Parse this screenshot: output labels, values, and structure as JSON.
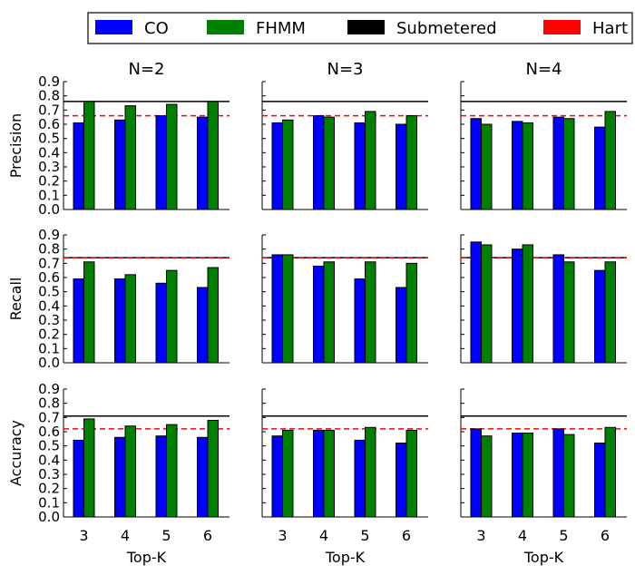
{
  "chart_data": {
    "type": "bar",
    "legend": {
      "placement": "top",
      "entries": [
        {
          "label": "CO",
          "color": "#0000ff"
        },
        {
          "label": "FHMM",
          "color": "#008000"
        },
        {
          "label": "Submetered",
          "color": "#000000"
        },
        {
          "label": "Hart",
          "color": "#ff0000"
        }
      ]
    },
    "columns": [
      "N=2",
      "N=3",
      "N=4"
    ],
    "rows": [
      "Precision",
      "Recall",
      "Accuracy"
    ],
    "xlabel": "Top-K",
    "categories": [
      "3",
      "4",
      "5",
      "6"
    ],
    "ylim": [
      0,
      0.9
    ],
    "yticks": [
      "0.0",
      "0.1",
      "0.2",
      "0.3",
      "0.4",
      "0.5",
      "0.6",
      "0.7",
      "0.8",
      "0.9"
    ],
    "reference_lines": {
      "Precision": {
        "Submetered": 0.76,
        "Hart": 0.66
      },
      "Recall": {
        "Submetered": 0.74,
        "Hart": 0.74
      },
      "Accuracy": {
        "Submetered": 0.71,
        "Hart": 0.62
      }
    },
    "panels": [
      {
        "row": "Precision",
        "column": "N=2",
        "series": [
          {
            "name": "CO",
            "values": [
              0.61,
              0.63,
              0.66,
              0.65
            ]
          },
          {
            "name": "FHMM",
            "values": [
              0.76,
              0.73,
              0.74,
              0.76
            ]
          }
        ]
      },
      {
        "row": "Precision",
        "column": "N=3",
        "series": [
          {
            "name": "CO",
            "values": [
              0.61,
              0.66,
              0.61,
              0.6
            ]
          },
          {
            "name": "FHMM",
            "values": [
              0.63,
              0.65,
              0.69,
              0.66
            ]
          }
        ]
      },
      {
        "row": "Precision",
        "column": "N=4",
        "series": [
          {
            "name": "CO",
            "values": [
              0.64,
              0.62,
              0.65,
              0.58
            ]
          },
          {
            "name": "FHMM",
            "values": [
              0.6,
              0.61,
              0.64,
              0.69
            ]
          }
        ]
      },
      {
        "row": "Recall",
        "column": "N=2",
        "series": [
          {
            "name": "CO",
            "values": [
              0.59,
              0.59,
              0.56,
              0.53
            ]
          },
          {
            "name": "FHMM",
            "values": [
              0.71,
              0.62,
              0.65,
              0.67
            ]
          }
        ]
      },
      {
        "row": "Recall",
        "column": "N=3",
        "series": [
          {
            "name": "CO",
            "values": [
              0.76,
              0.68,
              0.59,
              0.53
            ]
          },
          {
            "name": "FHMM",
            "values": [
              0.76,
              0.71,
              0.71,
              0.7
            ]
          }
        ]
      },
      {
        "row": "Recall",
        "column": "N=4",
        "series": [
          {
            "name": "CO",
            "values": [
              0.85,
              0.8,
              0.76,
              0.65
            ]
          },
          {
            "name": "FHMM",
            "values": [
              0.83,
              0.83,
              0.71,
              0.71
            ]
          }
        ]
      },
      {
        "row": "Accuracy",
        "column": "N=2",
        "series": [
          {
            "name": "CO",
            "values": [
              0.54,
              0.56,
              0.57,
              0.56
            ]
          },
          {
            "name": "FHMM",
            "values": [
              0.69,
              0.64,
              0.65,
              0.68
            ]
          }
        ]
      },
      {
        "row": "Accuracy",
        "column": "N=3",
        "series": [
          {
            "name": "CO",
            "values": [
              0.57,
              0.61,
              0.54,
              0.52
            ]
          },
          {
            "name": "FHMM",
            "values": [
              0.61,
              0.61,
              0.63,
              0.61
            ]
          }
        ]
      },
      {
        "row": "Accuracy",
        "column": "N=4",
        "series": [
          {
            "name": "CO",
            "values": [
              0.62,
              0.59,
              0.62,
              0.52
            ]
          },
          {
            "name": "FHMM",
            "values": [
              0.57,
              0.59,
              0.58,
              0.63
            ]
          }
        ]
      }
    ]
  }
}
